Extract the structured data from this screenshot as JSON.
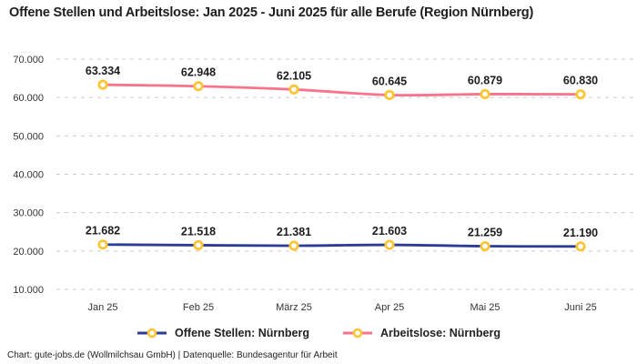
{
  "title": "Offene Stellen und Arbeitslose: Jan 2025 - Juni 2025 für alle Berufe (Region Nürnberg)",
  "footer": "Chart: gute-jobs.de (Wollmilchsau GmbH) | Datenquelle: Bundesagentur für Arbeit",
  "colors": {
    "open_positions_line": "#2B3C94",
    "unemployed_line": "#F8748A",
    "marker_ring": "#FFC433",
    "marker_fill": "#FFFFFF",
    "grid": "#CBCBCB",
    "data_label": "#1D1D1D",
    "axis_label": "#333333"
  },
  "chart_data": {
    "type": "line",
    "categories": [
      "Jan 25",
      "Feb 25",
      "März 25",
      "Apr 25",
      "Mai 25",
      "Juni 25"
    ],
    "series": [
      {
        "name": "Offene Stellen: Nürnberg",
        "color": "#2B3C94",
        "values": [
          21682,
          21518,
          21381,
          21603,
          21259,
          21190
        ],
        "labels": [
          "21.682",
          "21.518",
          "21.381",
          "21.603",
          "21.259",
          "21.190"
        ]
      },
      {
        "name": "Arbeitslose: Nürnberg",
        "color": "#F8748A",
        "values": [
          63334,
          62948,
          62105,
          60645,
          60879,
          60830
        ],
        "labels": [
          "63.334",
          "62.948",
          "62.105",
          "60.645",
          "60.879",
          "60.830"
        ]
      }
    ],
    "yticks": [
      {
        "value": 70000,
        "label": "70.000"
      },
      {
        "value": 60000,
        "label": "60.000"
      },
      {
        "value": 50000,
        "label": "50.000"
      },
      {
        "value": 40000,
        "label": "40.000"
      },
      {
        "value": 30000,
        "label": "30.000"
      },
      {
        "value": 20000,
        "label": "20.000"
      },
      {
        "value": 10000,
        "label": "10.000"
      }
    ],
    "ylim": [
      10000,
      70000
    ],
    "grid": "dashed-horizontal",
    "legend_position": "bottom",
    "marker_style": "ring"
  }
}
